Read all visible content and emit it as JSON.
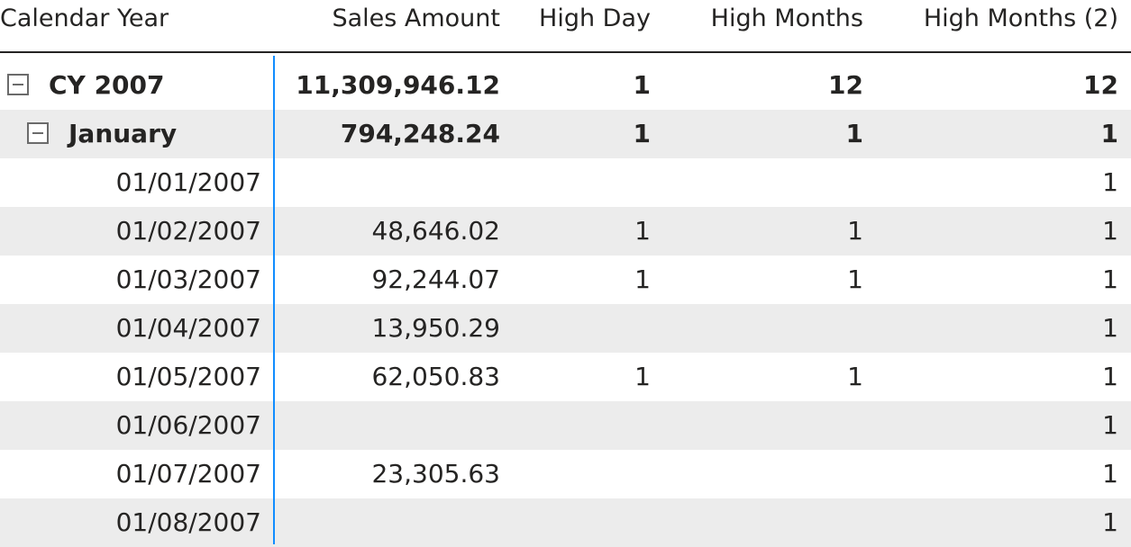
{
  "columns": [
    "Calendar Year",
    "Sales Amount",
    "High Day",
    "High Months",
    "High Months (2)"
  ],
  "rows": [
    {
      "label": "CY 2007",
      "sales": "11,309,946.12",
      "high_day": "1",
      "high_months": "12",
      "high_months_2": "12"
    },
    {
      "label": "January",
      "sales": "794,248.24",
      "high_day": "1",
      "high_months": "1",
      "high_months_2": "1"
    },
    {
      "label": "01/01/2007",
      "sales": "",
      "high_day": "",
      "high_months": "",
      "high_months_2": "1"
    },
    {
      "label": "01/02/2007",
      "sales": "48,646.02",
      "high_day": "1",
      "high_months": "1",
      "high_months_2": "1"
    },
    {
      "label": "01/03/2007",
      "sales": "92,244.07",
      "high_day": "1",
      "high_months": "1",
      "high_months_2": "1"
    },
    {
      "label": "01/04/2007",
      "sales": "13,950.29",
      "high_day": "",
      "high_months": "",
      "high_months_2": "1"
    },
    {
      "label": "01/05/2007",
      "sales": "62,050.83",
      "high_day": "1",
      "high_months": "1",
      "high_months_2": "1"
    },
    {
      "label": "01/06/2007",
      "sales": "",
      "high_day": "",
      "high_months": "",
      "high_months_2": "1"
    },
    {
      "label": "01/07/2007",
      "sales": "23,305.63",
      "high_day": "",
      "high_months": "",
      "high_months_2": "1"
    },
    {
      "label": "01/08/2007",
      "sales": "",
      "high_day": "",
      "high_months": "",
      "high_months_2": "1"
    }
  ],
  "icons": {
    "collapse": "collapse-minus-icon"
  },
  "colors": {
    "divider": "#118dff",
    "alt_row": "#ececec",
    "text": "#252423"
  }
}
